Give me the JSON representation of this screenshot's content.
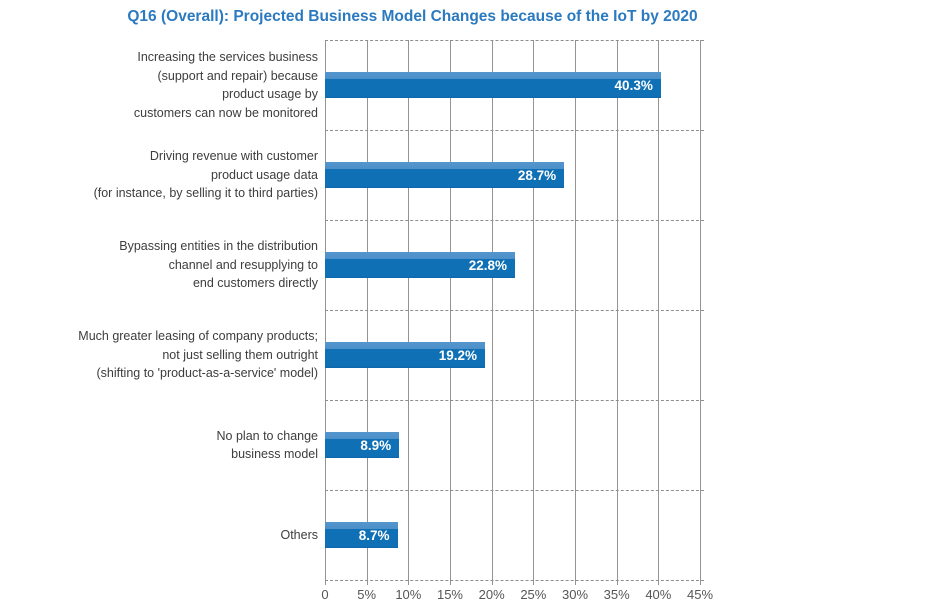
{
  "title": "Q16 (Overall): Projected Business Model Changes because of the IoT by 2020",
  "colors": {
    "title_text": "#2b7ac0",
    "bar_body": "#1070b5",
    "bar_top_strip": "#4c8fc9",
    "bar_value_text": "#ffffff",
    "category_text": "#3d3d3d",
    "axis_text": "#565656",
    "gridline": "#949494",
    "separator_dashed": "#8e8e8e",
    "background": "#ffffff"
  },
  "chart_data": {
    "type": "bar",
    "orientation": "horizontal",
    "title": "Q16 (Overall): Projected Business Model Changes because of the IoT by 2020",
    "categories": [
      "Increasing the services business\n(support and repair) because\nproduct usage by\ncustomers can now be monitored",
      "Driving revenue with customer\nproduct usage data\n(for instance, by selling it to third parties)",
      "Bypassing entities in the distribution\nchannel and resupplying to\nend customers directly",
      "Much greater leasing of company products;\nnot just selling them outright\n(shifting to 'product-as-a-service' model)",
      "No plan to change\nbusiness model",
      "Others"
    ],
    "values": [
      40.3,
      28.7,
      22.8,
      19.2,
      8.9,
      8.7
    ],
    "value_labels": [
      "40.3%",
      "28.7%",
      "22.8%",
      "19.2%",
      "8.9%",
      "8.7%"
    ],
    "xlabel": "",
    "ylabel": "",
    "xlim": [
      0,
      45
    ],
    "x_tick_step": 5,
    "x_tick_labels": [
      "0",
      "5%",
      "10%",
      "15%",
      "20%",
      "25%",
      "30%",
      "35%",
      "40%",
      "45%"
    ],
    "grid": "vertical solid gridlines every 5%; dashed horizontal row separators",
    "legend": "none",
    "value_label_position": "inside-end"
  }
}
